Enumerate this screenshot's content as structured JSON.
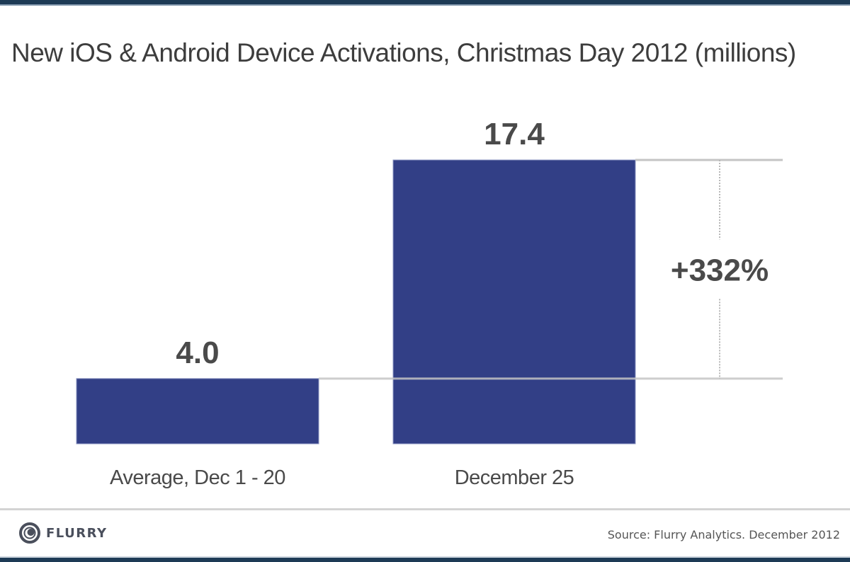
{
  "chart_data": {
    "type": "bar",
    "title": "New iOS & Android Device Activations, Christmas Day 2012 (millions)",
    "categories": [
      "Average, Dec 1 - 20",
      "December 25"
    ],
    "values": [
      4.0,
      17.4
    ],
    "value_labels": [
      "4.0",
      "17.4"
    ],
    "xlabel": "",
    "ylabel": "",
    "ylim": [
      0,
      17.4
    ],
    "grid": false,
    "annotation": {
      "text": "+332%",
      "from_value": 4.0,
      "to_value": 17.4
    },
    "bar_color": "#323f86"
  },
  "footer": {
    "logo_text": "FLURRY",
    "source": "Source: Flurry Analytics. December 2012"
  },
  "colors": {
    "bar": "#323f86",
    "text": "#4a4a4a",
    "border": "#1d3a55",
    "rule": "#c8c8c8"
  }
}
